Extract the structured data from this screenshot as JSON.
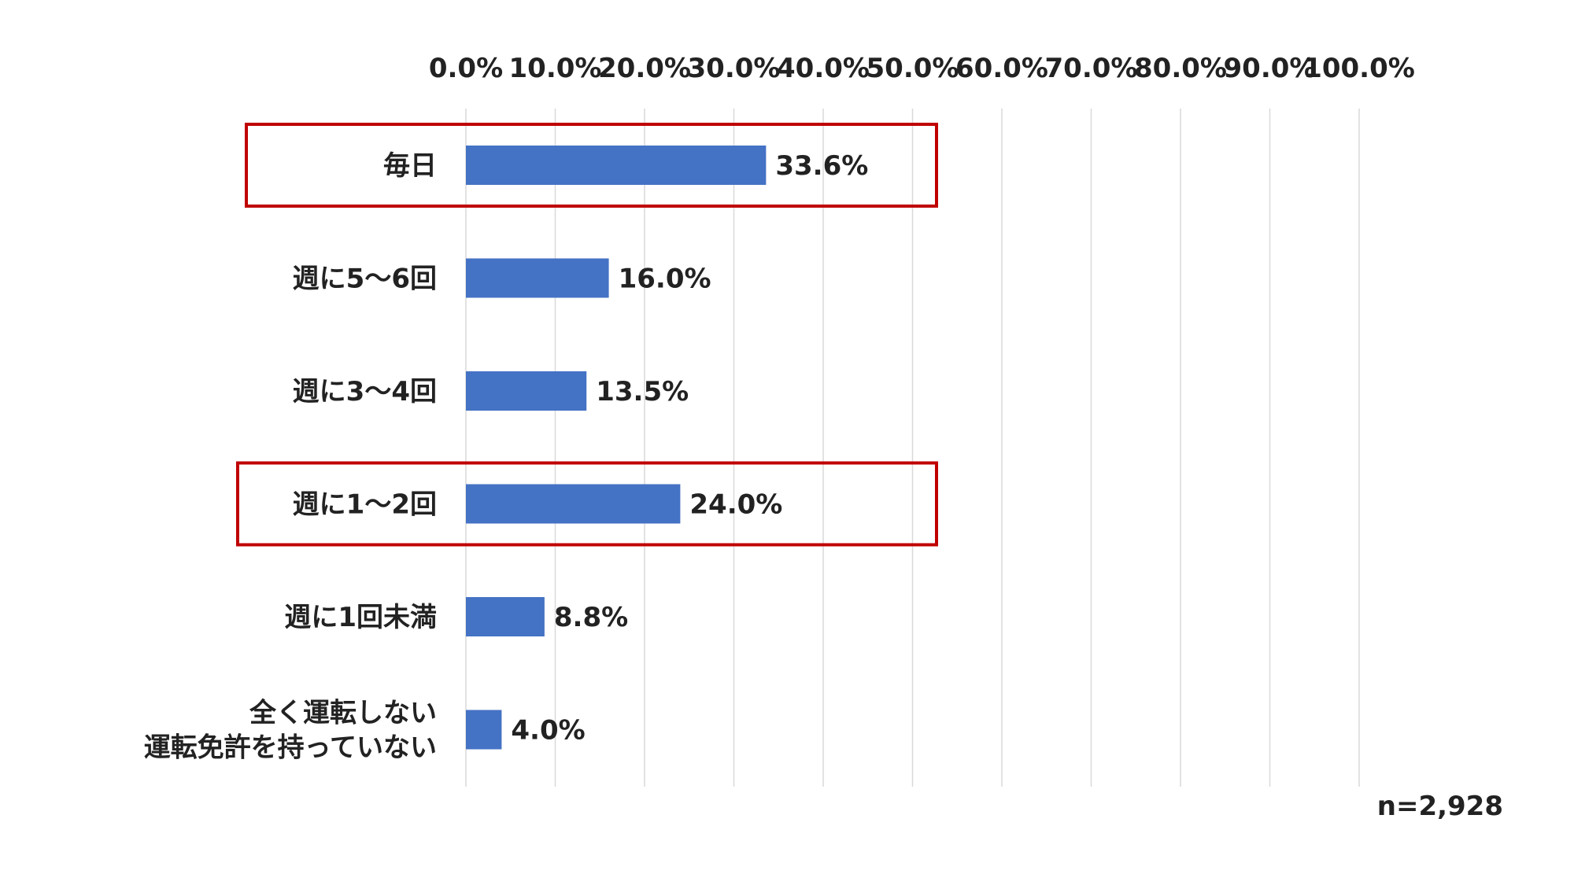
{
  "chart_data": {
    "type": "bar",
    "orientation": "horizontal",
    "categories": [
      [
        "毎日"
      ],
      [
        "週に5～6回"
      ],
      [
        "週に3～4回"
      ],
      [
        "週に1～2回"
      ],
      [
        "週に1回未満"
      ],
      [
        "全く運転しない",
        "運転免許を持っていない"
      ]
    ],
    "values": [
      33.6,
      16.0,
      13.5,
      24.0,
      8.8,
      4.0
    ],
    "value_labels": [
      "33.6%",
      "16.0%",
      "13.5%",
      "24.0%",
      "8.8%",
      "4.0%"
    ],
    "xlim": [
      0,
      100
    ],
    "x_ticks": [
      0,
      10,
      20,
      30,
      40,
      50,
      60,
      70,
      80,
      90,
      100
    ],
    "x_tick_labels": [
      "0.0%",
      "10.0%",
      "20.0%",
      "30.0%",
      "40.0%",
      "50.0%",
      "60.0%",
      "70.0%",
      "80.0%",
      "90.0%",
      "100.0%"
    ],
    "x_axis_position": "top",
    "grid": "vertical",
    "highlighted_categories": [
      0,
      3
    ],
    "note": "n=2,928"
  },
  "colors": {
    "bar": "#4472C4",
    "grid": "#D9D9D9",
    "highlight_box": "#C00000",
    "text": "#222222"
  }
}
